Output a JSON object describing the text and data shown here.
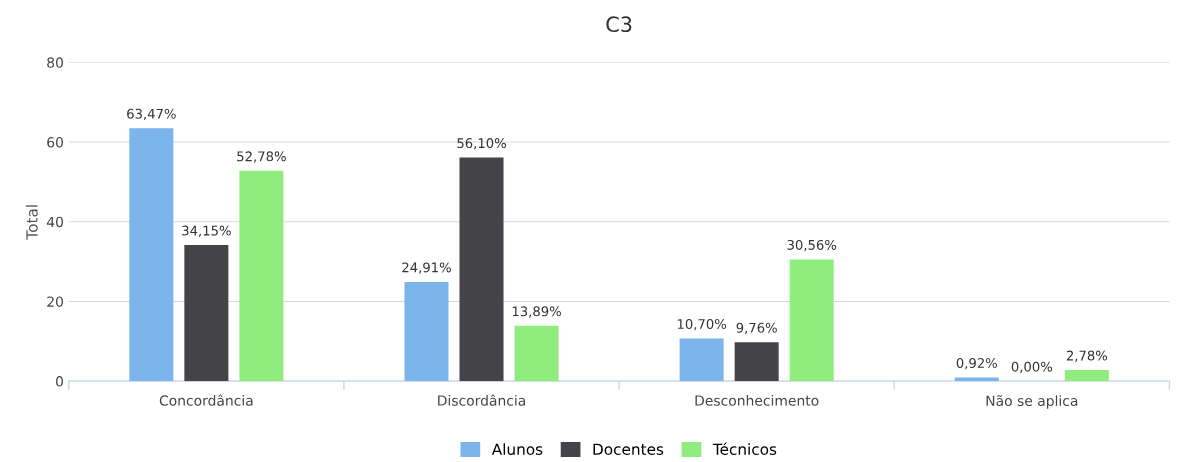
{
  "chart_data": {
    "type": "bar",
    "title": "C3",
    "ylabel": "Total",
    "categories": [
      "Concordância",
      "Discordância",
      "Desconhecimento",
      "Não se aplica"
    ],
    "series": [
      {
        "name": "Alunos",
        "color": "#7cb5ec",
        "values": [
          63.47,
          24.91,
          10.7,
          0.92
        ],
        "value_labels": [
          "63,47%",
          "24,91%",
          "10,70%",
          "0,92%"
        ]
      },
      {
        "name": "Docentes",
        "color": "#434348",
        "values": [
          34.15,
          56.1,
          9.76,
          0.0
        ],
        "value_labels": [
          "34,15%",
          "56,10%",
          "9,76%",
          "0,00%"
        ]
      },
      {
        "name": "Técnicos",
        "color": "#90ed7d",
        "values": [
          52.78,
          13.89,
          30.56,
          2.78
        ],
        "value_labels": [
          "52,78%",
          "13,89%",
          "30,56%",
          "2,78%"
        ]
      }
    ],
    "ylim": [
      0,
      80
    ],
    "yticks": [
      0,
      20,
      40,
      60,
      80
    ],
    "grid": "y",
    "legend": "bottom"
  }
}
